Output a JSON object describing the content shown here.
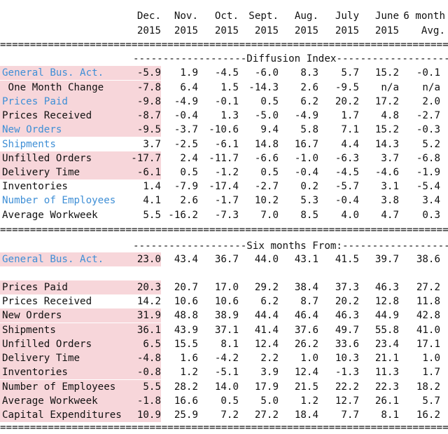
{
  "header": {
    "columns": [
      {
        "line1": "Dec.",
        "line2": "2015"
      },
      {
        "line1": "Nov.",
        "line2": "2015"
      },
      {
        "line1": "Oct.",
        "line2": "2015"
      },
      {
        "line1": "Sept.",
        "line2": "2015"
      },
      {
        "line1": "Aug.",
        "line2": "2015"
      },
      {
        "line1": "July",
        "line2": "2015"
      },
      {
        "line1": "June",
        "line2": "2015"
      },
      {
        "line1": "6 month",
        "line2": "Avg."
      }
    ]
  },
  "separator": "============================================================================",
  "section1": {
    "banner": "-------------------Diffusion Index---------------------",
    "rows": [
      {
        "label": "General Bus. Act.",
        "blue": true,
        "hl": true,
        "values": [
          "-5.9",
          "1.9",
          "-4.5",
          "-6.0",
          "8.3",
          "5.7",
          "15.2",
          "-0.1"
        ]
      },
      {
        "label": " One Month Change",
        "blue": false,
        "hl": true,
        "values": [
          "-7.8",
          "6.4",
          "1.5",
          "-14.3",
          "2.6",
          "-9.5",
          "n/a",
          "n/a"
        ]
      },
      {
        "label": "Prices Paid",
        "blue": true,
        "hl": true,
        "values": [
          "-9.8",
          "-4.9",
          "-0.1",
          "0.5",
          "6.2",
          "20.2",
          "17.2",
          "2.0"
        ]
      },
      {
        "label": "Prices Received",
        "blue": false,
        "hl": true,
        "values": [
          "-8.7",
          "-0.4",
          "1.3",
          "-5.0",
          "-4.9",
          "1.7",
          "4.8",
          "-2.7"
        ]
      },
      {
        "label": "New Orders",
        "blue": true,
        "hl": true,
        "values": [
          "-9.5",
          "-3.7",
          "-10.6",
          "9.4",
          "5.8",
          "7.1",
          "15.2",
          "-0.3"
        ]
      },
      {
        "label": "Shipments",
        "blue": true,
        "hl": false,
        "values": [
          "3.7",
          "-2.5",
          "-6.1",
          "14.8",
          "16.7",
          "4.4",
          "14.3",
          "5.2"
        ]
      },
      {
        "label": "Unfilled Orders",
        "blue": false,
        "hl": true,
        "values": [
          "-17.7",
          "2.4",
          "-11.7",
          "-6.6",
          "-1.0",
          "-6.3",
          "3.7",
          "-6.8"
        ]
      },
      {
        "label": "Delivery Time",
        "blue": false,
        "hl": true,
        "values": [
          "-6.1",
          "0.5",
          "-1.2",
          "0.5",
          "-0.4",
          "-4.5",
          "-4.6",
          "-1.9"
        ]
      },
      {
        "label": "Inventories",
        "blue": false,
        "hl": false,
        "values": [
          "1.4",
          "-7.9",
          "-17.4",
          "-2.7",
          "0.2",
          "-5.7",
          "3.1",
          "-5.4"
        ]
      },
      {
        "label": "Number of Employees",
        "blue": true,
        "hl": false,
        "values": [
          "4.1",
          "2.6",
          "-1.7",
          "10.2",
          "5.3",
          "-0.4",
          "3.8",
          "3.4"
        ]
      },
      {
        "label": "Average Workweek",
        "blue": false,
        "hl": false,
        "values": [
          "5.5",
          "-16.2",
          "-7.3",
          "7.0",
          "8.5",
          "4.0",
          "4.7",
          "0.3"
        ]
      }
    ]
  },
  "section2": {
    "banner": "-------------------Six months From:------------------",
    "general": {
      "label": "General Bus. Act.",
      "values": [
        "23.0",
        "43.4",
        "36.7",
        "44.0",
        "43.1",
        "41.5",
        "39.7",
        "38.6"
      ]
    },
    "rows": [
      {
        "label": "Prices Paid",
        "hl": true,
        "values": [
          "20.3",
          "20.7",
          "17.0",
          "29.2",
          "38.4",
          "37.3",
          "46.3",
          "27.2"
        ]
      },
      {
        "label": "Prices Received",
        "hl": false,
        "values": [
          "14.2",
          "10.6",
          "10.6",
          "6.2",
          "8.7",
          "20.2",
          "12.8",
          "11.8"
        ]
      },
      {
        "label": "New Orders",
        "hl": true,
        "values": [
          "31.9",
          "48.8",
          "38.9",
          "44.4",
          "46.4",
          "46.3",
          "44.9",
          "42.8"
        ]
      },
      {
        "label": "Shipments",
        "hl": true,
        "values": [
          "36.1",
          "43.9",
          "37.1",
          "41.4",
          "37.6",
          "49.7",
          "55.8",
          "41.0"
        ]
      },
      {
        "label": "Unfilled Orders",
        "hl": true,
        "values": [
          "6.5",
          "15.5",
          "8.1",
          "12.4",
          "26.2",
          "33.6",
          "23.4",
          "17.1"
        ]
      },
      {
        "label": "Delivery Time",
        "hl": true,
        "values": [
          "-4.8",
          "1.6",
          "-4.2",
          "2.2",
          "1.0",
          "10.3",
          "21.1",
          "1.0"
        ]
      },
      {
        "label": "Inventories",
        "hl": true,
        "values": [
          "-0.8",
          "1.2",
          "-5.1",
          "3.9",
          "12.4",
          "-1.3",
          "11.3",
          "1.7"
        ]
      },
      {
        "label": "Number of Employees",
        "hl": true,
        "values": [
          "5.5",
          "28.2",
          "14.0",
          "17.9",
          "21.5",
          "22.2",
          "22.3",
          "18.2"
        ]
      },
      {
        "label": "Average Workweek",
        "hl": true,
        "values": [
          "-1.8",
          "16.6",
          "0.5",
          "5.0",
          "1.2",
          "12.7",
          "26.1",
          "5.7"
        ]
      },
      {
        "label": "Capital Expenditures",
        "hl": true,
        "values": [
          "10.9",
          "25.9",
          "7.2",
          "27.2",
          "18.4",
          "7.7",
          "8.1",
          "16.2"
        ]
      }
    ]
  }
}
